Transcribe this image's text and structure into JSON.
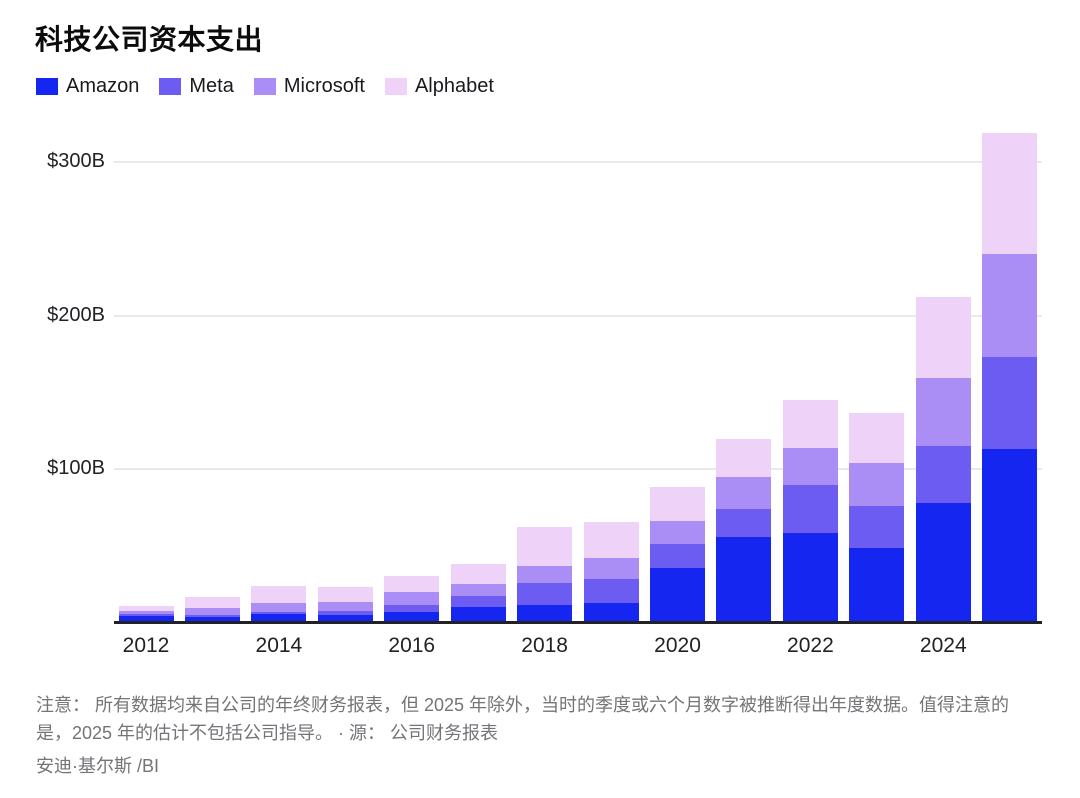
{
  "title": "科技公司资本支出",
  "chart_data": {
    "type": "bar",
    "stacked": true,
    "title": "科技公司资本支出",
    "unit": "USD billions",
    "categories": [
      "2012",
      "2013",
      "2014",
      "2015",
      "2016",
      "2017",
      "2018",
      "2019",
      "2020",
      "2021",
      "2022",
      "2023",
      "2024",
      "2025"
    ],
    "series": [
      {
        "name": "Amazon",
        "color": "#1526f0",
        "values": [
          3.8,
          3.4,
          4.9,
          4.6,
          6.7,
          10.1,
          11.3,
          12.7,
          35.0,
          55.4,
          58.3,
          48.4,
          77.7,
          113.0
        ]
      },
      {
        "name": "Meta",
        "color": "#6c5cf2",
        "values": [
          1.2,
          1.4,
          1.8,
          2.5,
          4.5,
          6.7,
          13.9,
          15.1,
          15.7,
          18.6,
          31.4,
          27.3,
          37.3,
          60.0
        ]
      },
      {
        "name": "Microsoft",
        "color": "#aa8ef5",
        "values": [
          2.3,
          4.3,
          5.5,
          5.9,
          8.3,
          8.1,
          11.6,
          13.9,
          15.4,
          20.6,
          23.9,
          28.1,
          44.5,
          67.0
        ]
      },
      {
        "name": "Alphabet",
        "color": "#efd2f8",
        "values": [
          3.3,
          7.4,
          11.0,
          9.9,
          10.2,
          13.2,
          25.1,
          23.5,
          22.3,
          24.6,
          31.5,
          32.3,
          52.5,
          79.0
        ]
      }
    ],
    "yticks": [
      {
        "label": "$100B",
        "value": 100
      },
      {
        "label": "$200B",
        "value": 200
      },
      {
        "label": "$300B",
        "value": 300
      }
    ],
    "ylim": [
      0,
      330
    ],
    "xtick_labels": [
      "2012",
      "2014",
      "2016",
      "2018",
      "2020",
      "2022",
      "2024"
    ],
    "xtick_indices": [
      0,
      2,
      4,
      6,
      8,
      10,
      12
    ],
    "legend_position": "top-left",
    "grid": true
  },
  "footnote": {
    "line1": "注意： 所有数据均来自公司的年终财务报表，但 2025 年除外，当时的季度或六个月数字被推断得出年度数据。值得注意的",
    "line2": "是，2025 年的估计不包括公司指导。 · 源： 公司财务报表"
  },
  "byline": "安迪·基尔斯 /BI"
}
